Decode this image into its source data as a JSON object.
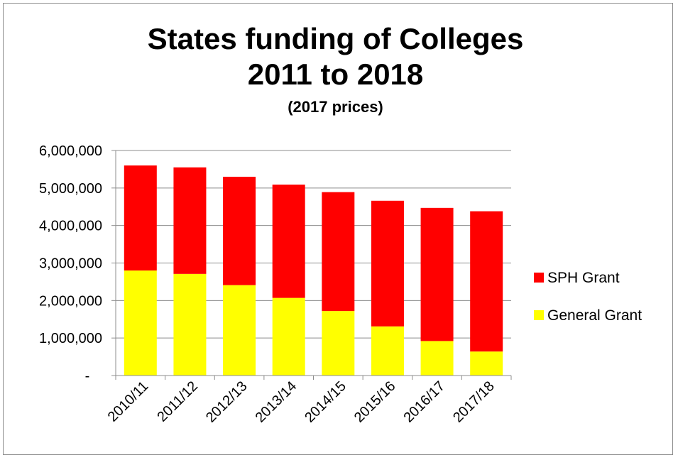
{
  "chart_data": {
    "type": "bar",
    "stacked": true,
    "title": "States funding of Colleges",
    "title_line2": "2011 to 2018",
    "subtitle": "(2017 prices)",
    "categories": [
      "2010/11",
      "2011/12",
      "2012/13",
      "2013/14",
      "2014/15",
      "2015/16",
      "2016/17",
      "2017/18"
    ],
    "series": [
      {
        "name": "General Grant",
        "color": "#ffff00",
        "values": [
          2800000,
          2710000,
          2410000,
          2070000,
          1720000,
          1310000,
          920000,
          640000
        ]
      },
      {
        "name": "SPH Grant",
        "color": "#ff0000",
        "values": [
          2800000,
          2840000,
          2890000,
          3020000,
          3170000,
          3350000,
          3550000,
          3740000
        ]
      }
    ],
    "ylim": [
      0,
      6000000
    ],
    "yticks": [
      0,
      1000000,
      2000000,
      3000000,
      4000000,
      5000000,
      6000000
    ],
    "ytick_labels": [
      "-",
      "1,000,000",
      "2,000,000",
      "3,000,000",
      "4,000,000",
      "5,000,000",
      "6,000,000"
    ],
    "grid": true,
    "legend_position": "right",
    "legend_order": [
      "SPH Grant",
      "General Grant"
    ]
  }
}
